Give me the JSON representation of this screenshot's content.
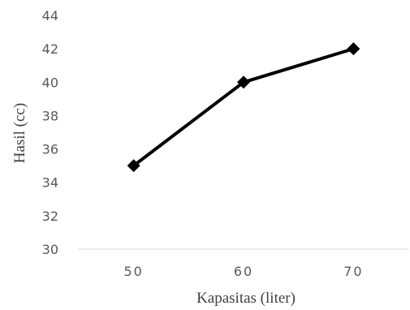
{
  "chart_data": {
    "type": "line",
    "categories": [
      "50",
      "60",
      "70"
    ],
    "series": [
      {
        "values": [
          35,
          40,
          42
        ],
        "color": "#000000",
        "marker": "diamond"
      }
    ],
    "xlabel": "Kapasitas (liter)",
    "ylabel": "Hasil (cc)",
    "ylim": [
      30,
      44
    ],
    "yticks": [
      30,
      32,
      34,
      36,
      38,
      40,
      42,
      44
    ],
    "grid": false,
    "legend": "none"
  }
}
